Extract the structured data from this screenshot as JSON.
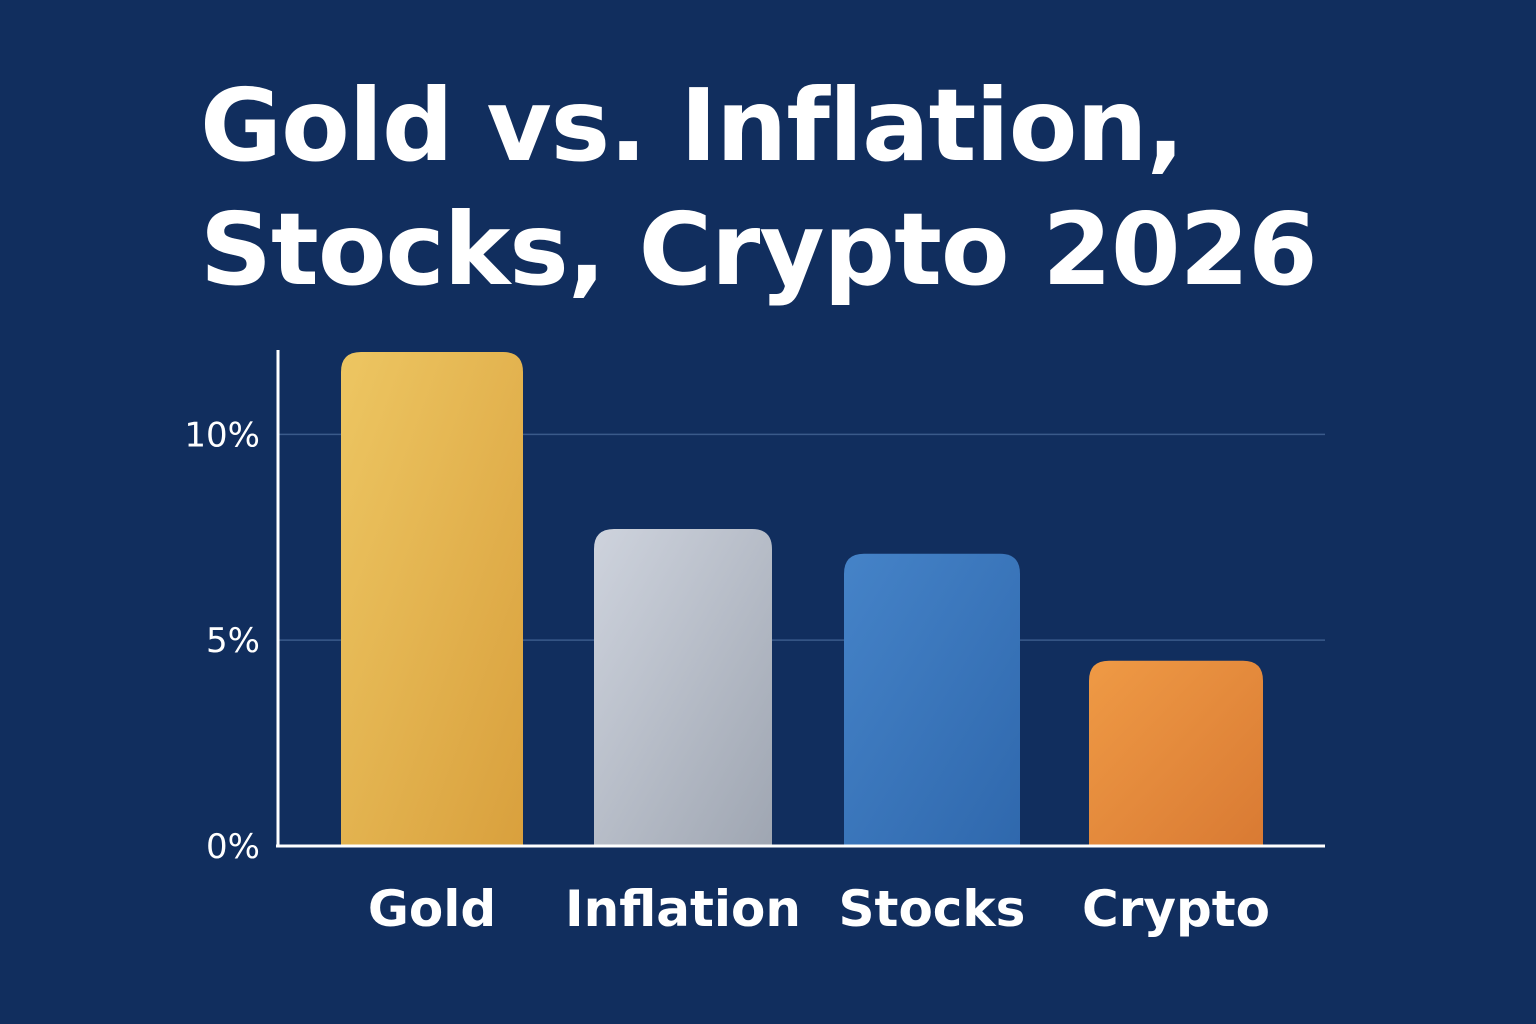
{
  "chart_data": {
    "type": "bar",
    "title_lines": [
      "Gold vs. Inflation,",
      "Stocks, Crypto 2026"
    ],
    "categories": [
      "Gold",
      "Inflation",
      "Stocks",
      "Crypto"
    ],
    "values": [
      12.0,
      7.7,
      7.1,
      4.5
    ],
    "unit": "%",
    "ylim": [
      0,
      12
    ],
    "yticks": [
      0,
      5,
      10
    ],
    "ytick_labels": [
      "0%",
      "5%",
      "10%"
    ],
    "grid": true,
    "legend": "none",
    "colors": {
      "background": "#112e5e",
      "Gold": [
        "#edc662",
        "#d9a03d"
      ],
      "Inflation": [
        "#ced3dd",
        "#9fa6b2"
      ],
      "Stocks": [
        "#4583c8",
        "#2f68ad"
      ],
      "Crypto": [
        "#ef9a45",
        "#d97a33"
      ],
      "gridline": "#3a5a8a",
      "axis": "#ffffff"
    }
  }
}
